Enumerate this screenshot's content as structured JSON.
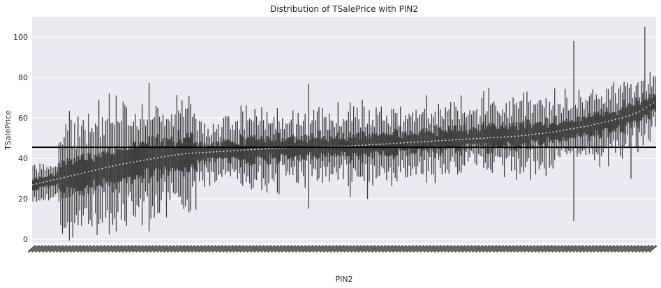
{
  "chart_data": {
    "type": "box",
    "title": "Distribution of TSalePrice with PIN2",
    "xlabel": "PIN2",
    "ylabel": "TSalePrice",
    "ylim": [
      -2,
      110
    ],
    "yticks": [
      0,
      20,
      40,
      60,
      80,
      100
    ],
    "grid": true,
    "category_count": 360,
    "reference_line": {
      "y": 45.5,
      "color": "#000000"
    },
    "median_trend": [
      {
        "x": 0,
        "y": 27
      },
      {
        "x": 10,
        "y": 29
      },
      {
        "x": 20,
        "y": 31
      },
      {
        "x": 30,
        "y": 33
      },
      {
        "x": 40,
        "y": 35
      },
      {
        "x": 50,
        "y": 37
      },
      {
        "x": 60,
        "y": 38.5
      },
      {
        "x": 70,
        "y": 40
      },
      {
        "x": 80,
        "y": 41.5
      },
      {
        "x": 90,
        "y": 42.5
      },
      {
        "x": 100,
        "y": 43
      },
      {
        "x": 120,
        "y": 44
      },
      {
        "x": 140,
        "y": 45
      },
      {
        "x": 160,
        "y": 45.5
      },
      {
        "x": 180,
        "y": 46
      },
      {
        "x": 200,
        "y": 47
      },
      {
        "x": 220,
        "y": 48
      },
      {
        "x": 240,
        "y": 49
      },
      {
        "x": 260,
        "y": 50
      },
      {
        "x": 280,
        "y": 51
      },
      {
        "x": 300,
        "y": 53
      },
      {
        "x": 320,
        "y": 56
      },
      {
        "x": 340,
        "y": 60
      },
      {
        "x": 350,
        "y": 63
      },
      {
        "x": 359,
        "y": 68
      }
    ],
    "notable_extremes": [
      {
        "x": 44,
        "low": 2.5,
        "high": 72
      },
      {
        "x": 24,
        "low": 8
      },
      {
        "x": 53,
        "low": 9
      },
      {
        "x": 159,
        "low": 15,
        "high": 77
      },
      {
        "x": 193,
        "low": 20
      },
      {
        "x": 312,
        "low": 9,
        "high": 98
      },
      {
        "x": 353,
        "high": 105
      },
      {
        "x": 345,
        "low": 30
      }
    ],
    "colors": {
      "plot_background": "#eaeaf2",
      "grid": "#ffffff",
      "box": "#3f3f3f",
      "median": "#ffffff",
      "text": "#262626"
    }
  }
}
